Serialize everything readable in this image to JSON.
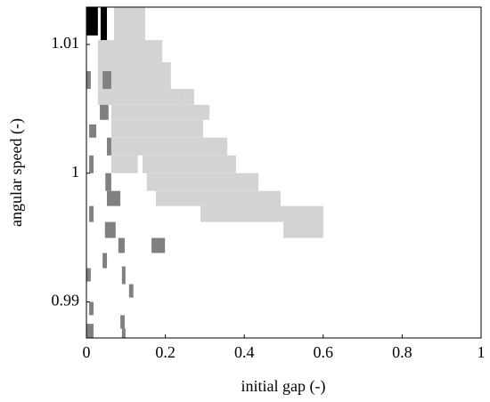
{
  "chart_data": {
    "type": "heatmap",
    "xlabel": "initial gap (-)",
    "ylabel": "angular speed (-)",
    "xlim": [
      0,
      1
    ],
    "ylim": [
      0.9872,
      1.0129
    ],
    "xticks": [
      0,
      0.2,
      0.4,
      0.6,
      0.8,
      1
    ],
    "yticks": [
      0.99,
      1,
      1.01
    ],
    "layers": [
      {
        "color": "#d3d3d3",
        "rects": [
          [
            0.07,
            0.149,
            1.01034,
            1.0129
          ],
          [
            0.029,
            0.192,
            1.00862,
            1.01034
          ],
          [
            0.029,
            0.214,
            1.00655,
            1.00862
          ],
          [
            0.029,
            0.233,
            1.00531,
            1.00655
          ],
          [
            0.233,
            0.273,
            1.00531,
            1.00655
          ],
          [
            0.063,
            0.312,
            1.00414,
            1.00531
          ],
          [
            0.063,
            0.296,
            1.00276,
            1.00414
          ],
          [
            0.063,
            0.357,
            1.00138,
            1.00276
          ],
          [
            0.063,
            0.13,
            1.0,
            1.00138
          ],
          [
            0.142,
            0.379,
            1.0,
            1.00138
          ],
          [
            0.153,
            0.436,
            0.99862,
            1.0
          ],
          [
            0.176,
            0.492,
            0.99745,
            0.99862
          ],
          [
            0.289,
            0.6,
            0.99621,
            0.99745
          ],
          [
            0.499,
            0.6,
            0.99497,
            0.99621
          ]
        ]
      },
      {
        "color": "#808080",
        "rects": [
          [
            0,
            0.011,
            1.00655,
            1.00793
          ],
          [
            0.041,
            0.063,
            1.00655,
            1.00793
          ],
          [
            0.034,
            0.056,
            1.00414,
            1.00531
          ],
          [
            0.007,
            0.025,
            1.00276,
            1.00379
          ],
          [
            0.052,
            0.063,
            1.00138,
            1.00276
          ],
          [
            0.007,
            0.018,
            1.0,
            1.00138
          ],
          [
            0.048,
            0.063,
            0.99862,
            1.0
          ],
          [
            0.052,
            0.086,
            0.99745,
            0.99862
          ],
          [
            0.007,
            0.018,
            0.99621,
            0.99745
          ],
          [
            0.047,
            0.074,
            0.99497,
            0.99621
          ],
          [
            0.081,
            0.097,
            0.9938,
            0.99497
          ],
          [
            0.165,
            0.199,
            0.9938,
            0.99497
          ],
          [
            0.041,
            0.052,
            0.99262,
            0.9938
          ],
          [
            0,
            0.011,
            0.99159,
            0.99262
          ],
          [
            0.09,
            0.099,
            0.99138,
            0.99276
          ],
          [
            0.108,
            0.119,
            0.99034,
            0.99138
          ],
          [
            0.007,
            0.018,
            0.98897,
            0.99
          ],
          [
            0.086,
            0.097,
            0.98793,
            0.98897
          ],
          [
            0,
            0.018,
            0.9872,
            0.9883
          ],
          [
            0.09,
            0.099,
            0.9872,
            0.98793
          ]
        ]
      },
      {
        "color": "#000000",
        "rects": [
          [
            0,
            0.029,
            1.0107,
            1.0129
          ],
          [
            0.036,
            0.052,
            1.01034,
            1.0129
          ]
        ]
      }
    ]
  }
}
